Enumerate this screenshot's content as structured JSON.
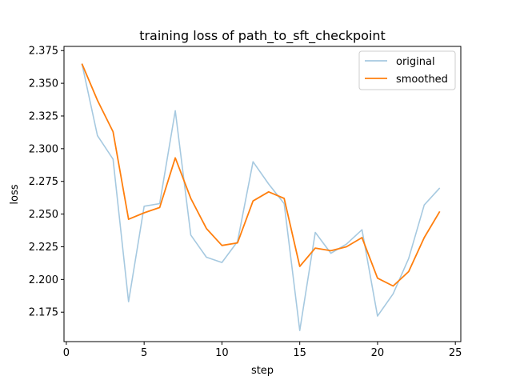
{
  "chart_data": {
    "type": "line",
    "title": "training loss of path_to_sft_checkpoint",
    "xlabel": "step",
    "ylabel": "loss",
    "xlim": [
      -0.15,
      25.35
    ],
    "ylim": [
      2.1525,
      2.3782
    ],
    "xticks": [
      0,
      5,
      10,
      15,
      20,
      25
    ],
    "yticks": [
      2.175,
      2.2,
      2.225,
      2.25,
      2.275,
      2.3,
      2.325,
      2.35,
      2.375
    ],
    "ytick_labels": [
      "2.175",
      "2.200",
      "2.225",
      "2.250",
      "2.275",
      "2.300",
      "2.325",
      "2.350",
      "2.375"
    ],
    "grid": false,
    "legend_position": "top-right",
    "x": [
      1,
      2,
      3,
      4,
      5,
      6,
      7,
      8,
      9,
      10,
      11,
      12,
      13,
      14,
      15,
      16,
      17,
      18,
      19,
      20,
      21,
      22,
      23,
      24
    ],
    "series": [
      {
        "name": "original",
        "color": "#a6c9e0",
        "values": [
          2.365,
          2.31,
          2.292,
          2.183,
          2.256,
          2.258,
          2.329,
          2.234,
          2.217,
          2.213,
          2.229,
          2.29,
          2.273,
          2.258,
          2.161,
          2.236,
          2.22,
          2.227,
          2.238,
          2.172,
          2.189,
          2.216,
          2.257,
          2.27
        ]
      },
      {
        "name": "smoothed",
        "color": "#ff7f0e",
        "values": [
          2.365,
          2.337,
          2.313,
          2.246,
          2.251,
          2.255,
          2.293,
          2.262,
          2.239,
          2.226,
          2.228,
          2.26,
          2.267,
          2.262,
          2.21,
          2.224,
          2.222,
          2.225,
          2.232,
          2.201,
          2.195,
          2.206,
          2.232,
          2.252
        ]
      }
    ]
  }
}
